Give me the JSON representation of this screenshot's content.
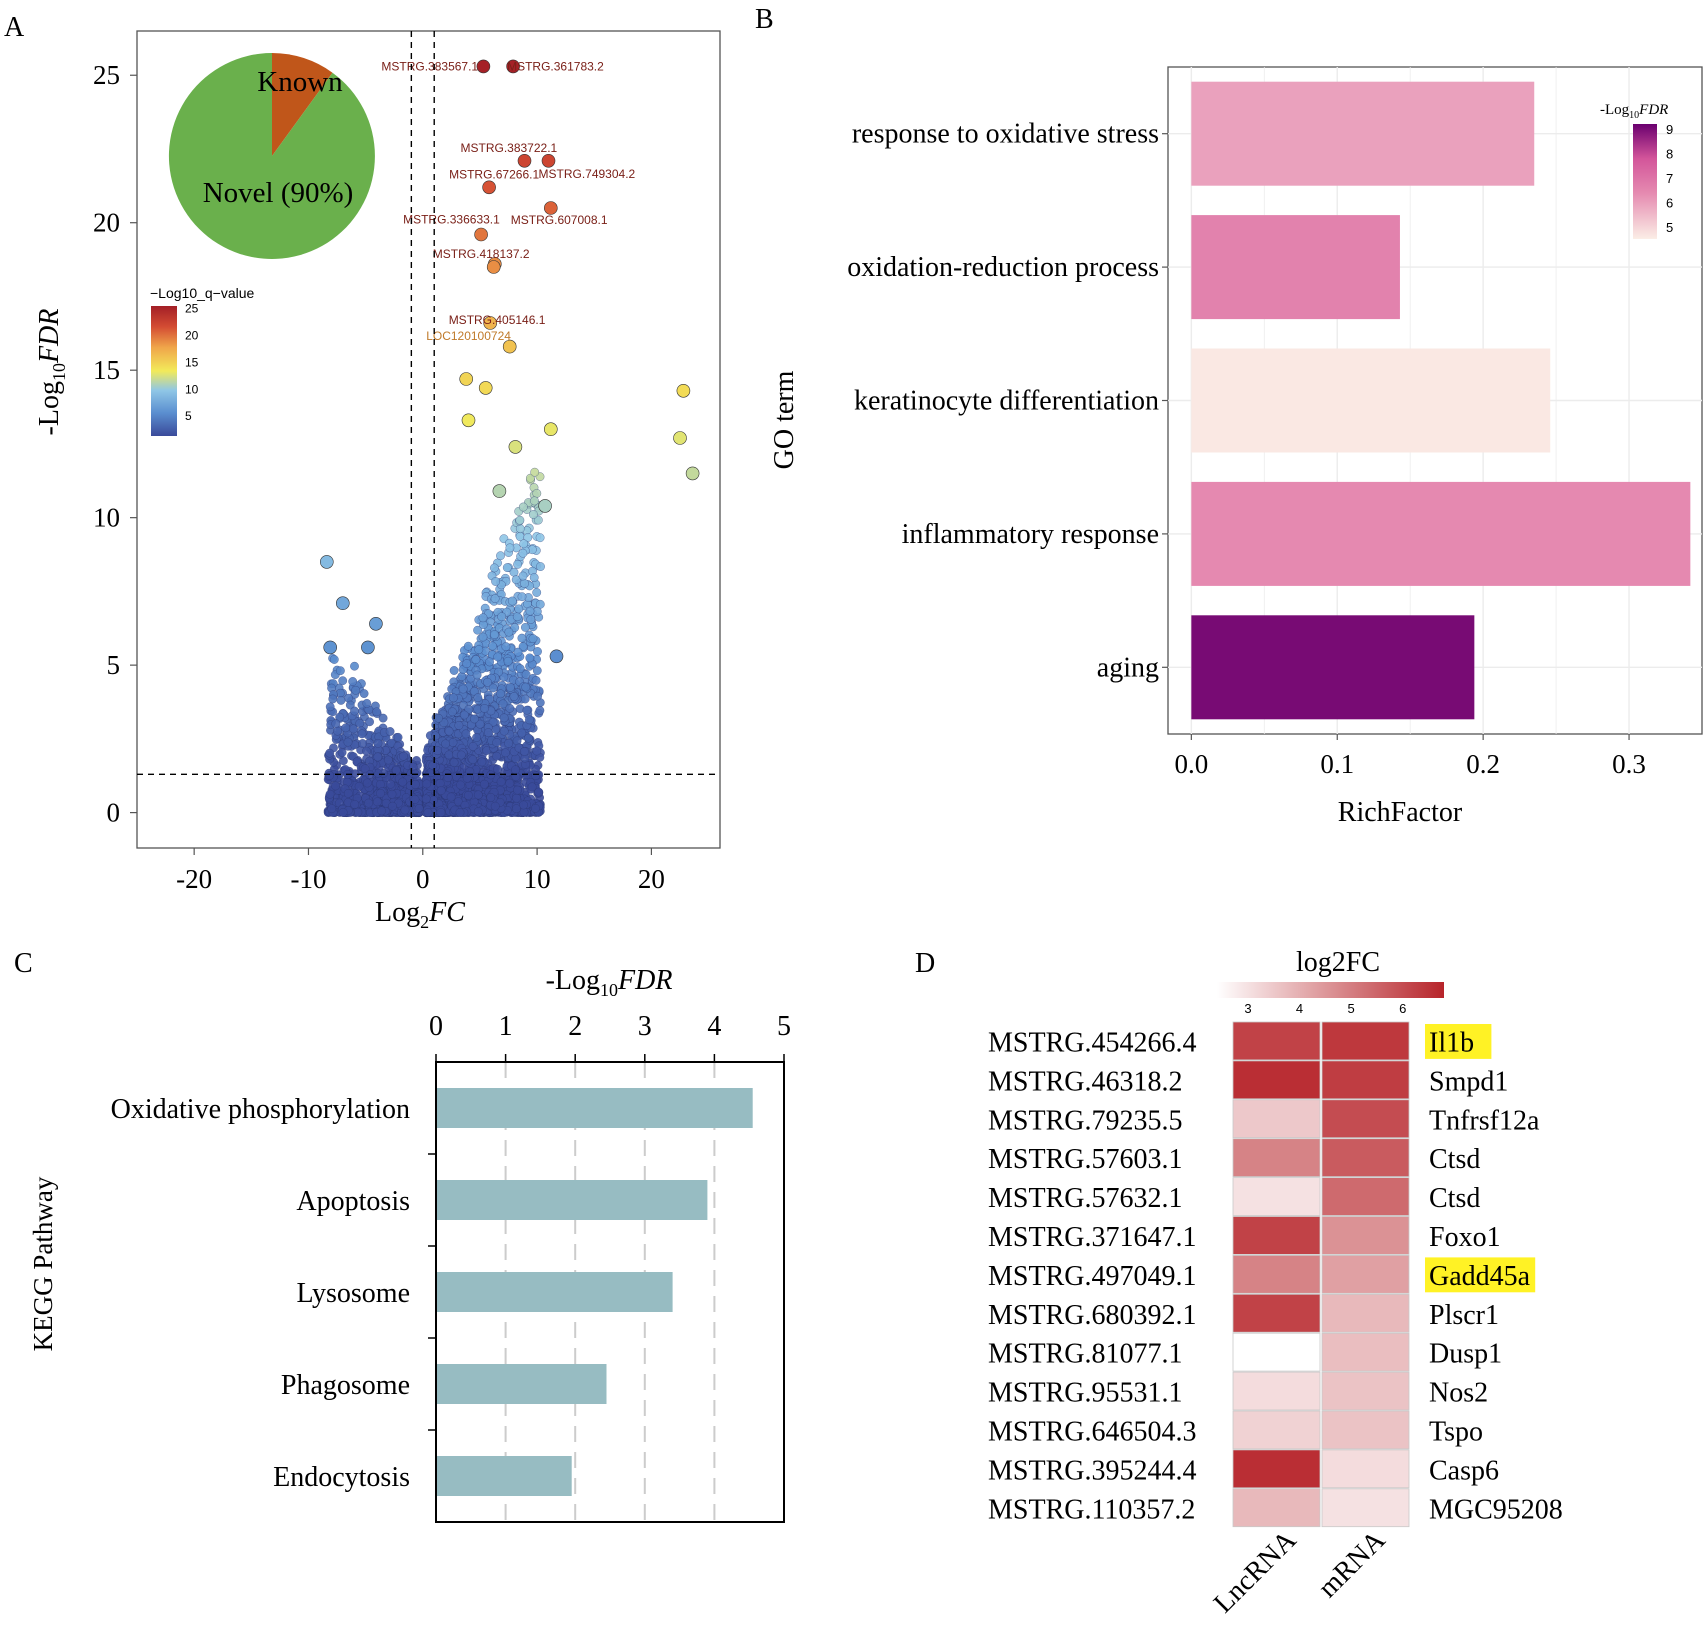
{
  "panel_labels": {
    "a": "A",
    "b": "B",
    "c": "C",
    "d": "D"
  },
  "chart_data": [
    {
      "id": "A",
      "type": "scatter",
      "title": "",
      "xlabel": "Log₂FC",
      "ylabel": "-Log₁₀FDR",
      "xlim": [
        -25,
        26
      ],
      "ylim": [
        -1.2,
        26.5
      ],
      "xticks": [
        -20,
        -10,
        0,
        10,
        20
      ],
      "yticks": [
        0,
        5,
        10,
        15,
        20,
        25
      ],
      "x_threshold": [
        -1,
        1
      ],
      "y_threshold": 1.3,
      "color_legend": {
        "title": "−Log10_q−value",
        "ticks": [
          5,
          10,
          15,
          20,
          25
        ],
        "min": 1.3,
        "max": 25.5,
        "colors": [
          "#3a4a9a",
          "#5b8fd0",
          "#8fc6e6",
          "#f2ea5a",
          "#f0a64a",
          "#d44c33",
          "#a31f26"
        ]
      },
      "pie": {
        "title": "",
        "slices": [
          {
            "label": "Known",
            "value": 10,
            "color": "#c0561a"
          },
          {
            "label": "Novel (90%)",
            "value": 90,
            "color": "#6ab04c"
          }
        ]
      },
      "points": [
        {
          "label": "MSTRG.383567.1",
          "x": 5.3,
          "y": 25.3
        },
        {
          "label": "MSTRG.361783.2",
          "x": 7.9,
          "y": 25.3
        },
        {
          "label": "MSTRG.383722.1",
          "x": 8.9,
          "y": 22.1
        },
        {
          "label": "MSTRG.749304.2",
          "x": 11.0,
          "y": 22.1
        },
        {
          "label": "MSTRG.67266.1",
          "x": 5.8,
          "y": 21.2
        },
        {
          "label": "MSTRG.336633.1",
          "x": 5.1,
          "y": 19.6
        },
        {
          "label": "MSTRG.607008.1",
          "x": 11.2,
          "y": 20.5
        },
        {
          "label": "MSTRG.418137.2",
          "x": 6.3,
          "y": 18.6
        },
        {
          "label": "MSTRG.405146.1",
          "x": 6.2,
          "y": 18.5
        },
        {
          "label": "LOC120100724",
          "x": 5.9,
          "y": 16.6
        },
        {
          "label": "",
          "x": 7.6,
          "y": 15.8
        },
        {
          "label": "",
          "x": 3.8,
          "y": 14.7
        },
        {
          "label": "",
          "x": 5.5,
          "y": 14.4
        },
        {
          "label": "",
          "x": 22.8,
          "y": 14.3
        },
        {
          "label": "",
          "x": 22.5,
          "y": 12.7
        },
        {
          "label": "",
          "x": 23.6,
          "y": 11.5
        },
        {
          "label": "",
          "x": 11.2,
          "y": 13.0
        },
        {
          "label": "",
          "x": 8.1,
          "y": 12.4
        },
        {
          "label": "",
          "x": 4.0,
          "y": 13.3
        },
        {
          "label": "",
          "x": 10.7,
          "y": 10.4
        },
        {
          "label": "",
          "x": 6.7,
          "y": 10.9
        },
        {
          "label": "",
          "x": -8.4,
          "y": 8.5
        },
        {
          "label": "",
          "x": -7.0,
          "y": 7.1
        },
        {
          "label": "",
          "x": -4.1,
          "y": 6.4
        },
        {
          "label": "",
          "x": -8.1,
          "y": 5.6
        },
        {
          "label": "",
          "x": -4.8,
          "y": 5.6
        },
        {
          "label": "",
          "x": 11.7,
          "y": 5.3
        }
      ]
    },
    {
      "id": "B",
      "type": "bar",
      "orientation": "horizontal",
      "title": "",
      "xlabel": "RichFactor",
      "ylabel": "GO term",
      "xlim": [
        -0.016,
        0.35
      ],
      "xticks": [
        "0.0",
        "0.1",
        "0.2",
        "0.3"
      ],
      "categories": [
        "response to oxidative stress",
        "oxidation-reduction process",
        "keratinocyte differentiation",
        "inflammatory response",
        "aging"
      ],
      "values": [
        0.235,
        0.143,
        0.246,
        0.342,
        0.194
      ],
      "color_values": [
        5.7,
        6.3,
        4.6,
        6.1,
        9.0
      ],
      "legend": {
        "title_prefix": "-Log",
        "title_sub": "10",
        "title_italic": "FDR",
        "ticks": [
          9,
          8,
          7,
          6,
          5
        ],
        "min": 4.5,
        "max": 9.2
      }
    },
    {
      "id": "C",
      "type": "bar",
      "orientation": "horizontal",
      "title": "",
      "xlabel": "-Log₁₀FDR",
      "ylabel": "KEGG Pathway",
      "xlim": [
        0,
        5
      ],
      "xticks": [
        0,
        1,
        2,
        3,
        4,
        5
      ],
      "categories": [
        "Oxidative phosphorylation",
        "Apoptosis",
        "Lysosome",
        "Phagosome",
        "Endocytosis"
      ],
      "values": [
        4.55,
        3.9,
        3.4,
        2.45,
        1.95
      ],
      "color": "#97bcc2"
    },
    {
      "id": "D",
      "type": "heatmap",
      "title": "log2FC",
      "columns": [
        "LncRNA",
        "mRNA"
      ],
      "legend_ticks": [
        3,
        4,
        5,
        6
      ],
      "scale_min": 2.4,
      "scale_max": 6.8,
      "rows": [
        {
          "lnc": "MSTRG.454266.4",
          "gene": "Il1b",
          "highlight": true,
          "values": [
            6.2,
            6.4
          ]
        },
        {
          "lnc": "MSTRG.46318.2",
          "gene": "Smpd1",
          "highlight": false,
          "values": [
            6.6,
            6.3
          ]
        },
        {
          "lnc": "MSTRG.79235.5",
          "gene": "Tnfrsf12a",
          "highlight": false,
          "values": [
            3.5,
            6.0
          ]
        },
        {
          "lnc": "MSTRG.57603.1",
          "gene": "Ctsd",
          "highlight": false,
          "values": [
            4.9,
            5.7
          ]
        },
        {
          "lnc": "MSTRG.57632.1",
          "gene": "Ctsd",
          "highlight": false,
          "values": [
            3.0,
            5.4
          ]
        },
        {
          "lnc": "MSTRG.371647.1",
          "gene": "Foxo1",
          "highlight": false,
          "values": [
            6.2,
            4.6
          ]
        },
        {
          "lnc": "MSTRG.497049.1",
          "gene": "Gadd45a",
          "highlight": true,
          "values": [
            4.9,
            4.3
          ]
        },
        {
          "lnc": "MSTRG.680392.1",
          "gene": "Plscr1",
          "highlight": false,
          "values": [
            6.2,
            3.8
          ]
        },
        {
          "lnc": "MSTRG.81077.1",
          "gene": "Dusp1",
          "highlight": false,
          "values": [
            2.4,
            3.7
          ]
        },
        {
          "lnc": "MSTRG.95531.1",
          "gene": "Nos2",
          "highlight": false,
          "values": [
            3.1,
            3.6
          ]
        },
        {
          "lnc": "MSTRG.646504.3",
          "gene": "Tspo",
          "highlight": false,
          "values": [
            3.3,
            3.6
          ]
        },
        {
          "lnc": "MSTRG.395244.4",
          "gene": "Casp6",
          "highlight": false,
          "values": [
            6.6,
            3.1
          ]
        },
        {
          "lnc": "MSTRG.110357.2",
          "gene": "MGC95208",
          "highlight": false,
          "values": [
            3.8,
            3.0
          ]
        }
      ]
    }
  ]
}
